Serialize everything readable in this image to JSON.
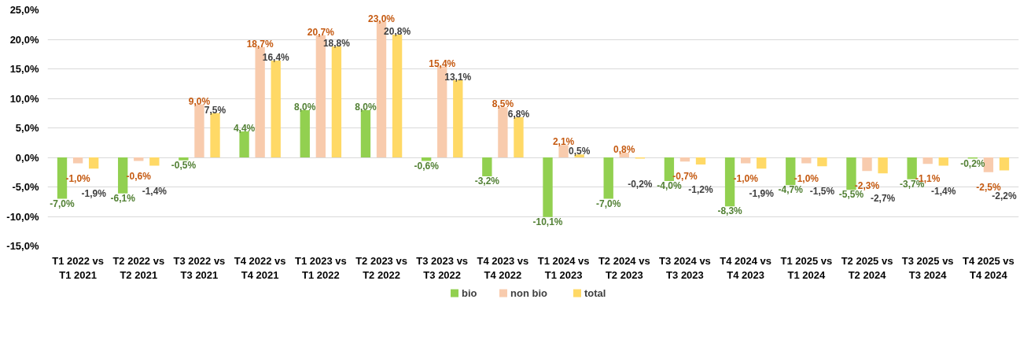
{
  "chart_data": {
    "type": "bar",
    "categories": [
      "T1 2022 vs\nT1 2021",
      "T2 2022 vs\nT2 2021",
      "T3 2022 vs\nT3 2021",
      "T4 2022 vs\nT4 2021",
      "T1 2023 vs\nT1 2022",
      "T2 2023 vs\nT2 2022",
      "T3 2023 vs\nT3 2022",
      "T4 2023 vs\nT4 2022",
      "T1 2024 vs\nT1 2023",
      "T2 2024 vs\nT2 2023",
      "T3 2024 vs\nT3 2023",
      "T4 2024 vs\nT4 2023",
      "T1 2025 vs\nT1 2024",
      "T2 2025 vs\nT2 2024",
      "T3 2025 vs\nT3 2024",
      "T4 2025 vs\nT4 2024"
    ],
    "series": [
      {
        "name": "bio",
        "color": "#92d050",
        "values": [
          -7.0,
          -6.1,
          -0.5,
          4.4,
          8.0,
          8.0,
          -0.6,
          -3.2,
          -10.1,
          -7.0,
          -4.0,
          -8.3,
          -4.7,
          -5.5,
          -3.7,
          -0.2
        ],
        "value_labels": [
          "-7,0%",
          "-6,1%",
          "-0,5%",
          "4,4%",
          "8,0%",
          "8,0%",
          "-0,6%",
          "-3,2%",
          "-10,1%",
          "-7,0%",
          "-4,0%",
          "-8,3%",
          "-4,7%",
          "-5,5%",
          "-3,7%",
          "-0,2%"
        ]
      },
      {
        "name": "non bio",
        "color": "#f8cbad",
        "values": [
          -1.0,
          -0.6,
          9.0,
          18.7,
          20.7,
          23.0,
          15.4,
          8.5,
          2.1,
          0.8,
          -0.7,
          -1.0,
          -1.0,
          -2.3,
          -1.1,
          -2.5
        ],
        "value_labels": [
          "-1,0%",
          "-0,6%",
          "9,0%",
          "18,7%",
          "20,7%",
          "23,0%",
          "15,4%",
          "8,5%",
          "2,1%",
          "0,8%",
          "-0,7%",
          "-1,0%",
          "-1,0%",
          "-2,3%",
          "-1,1%",
          "-2,5%"
        ]
      },
      {
        "name": "total",
        "color": "#ffd966",
        "values": [
          -1.9,
          -1.4,
          7.5,
          16.4,
          18.8,
          20.8,
          13.1,
          6.8,
          0.5,
          -0.2,
          -1.2,
          -1.9,
          -1.5,
          -2.7,
          -1.4,
          -2.2
        ],
        "value_labels": [
          "-1,9%",
          "-1,4%",
          "7,5%",
          "16,4%",
          "18,8%",
          "20,8%",
          "13,1%",
          "6,8%",
          "0,5%",
          "-0,2%",
          "-1,2%",
          "-1,9%",
          "-1,5%",
          "-2,7%",
          "-1,4%",
          "-2,2%"
        ]
      }
    ],
    "ylim": [
      -15,
      25
    ],
    "yticks": [
      {
        "value": -15,
        "label": "-15,0%"
      },
      {
        "value": -10,
        "label": "-10,0%"
      },
      {
        "value": -5,
        "label": "-5,0%"
      },
      {
        "value": 0,
        "label": "0,0%"
      },
      {
        "value": 5,
        "label": "5,0%"
      },
      {
        "value": 10,
        "label": "10,0%"
      },
      {
        "value": 15,
        "label": "15,0%"
      },
      {
        "value": 20,
        "label": "20,0%"
      },
      {
        "value": 25,
        "label": "25,0%"
      }
    ],
    "grid": "y",
    "legend": "bottom"
  }
}
